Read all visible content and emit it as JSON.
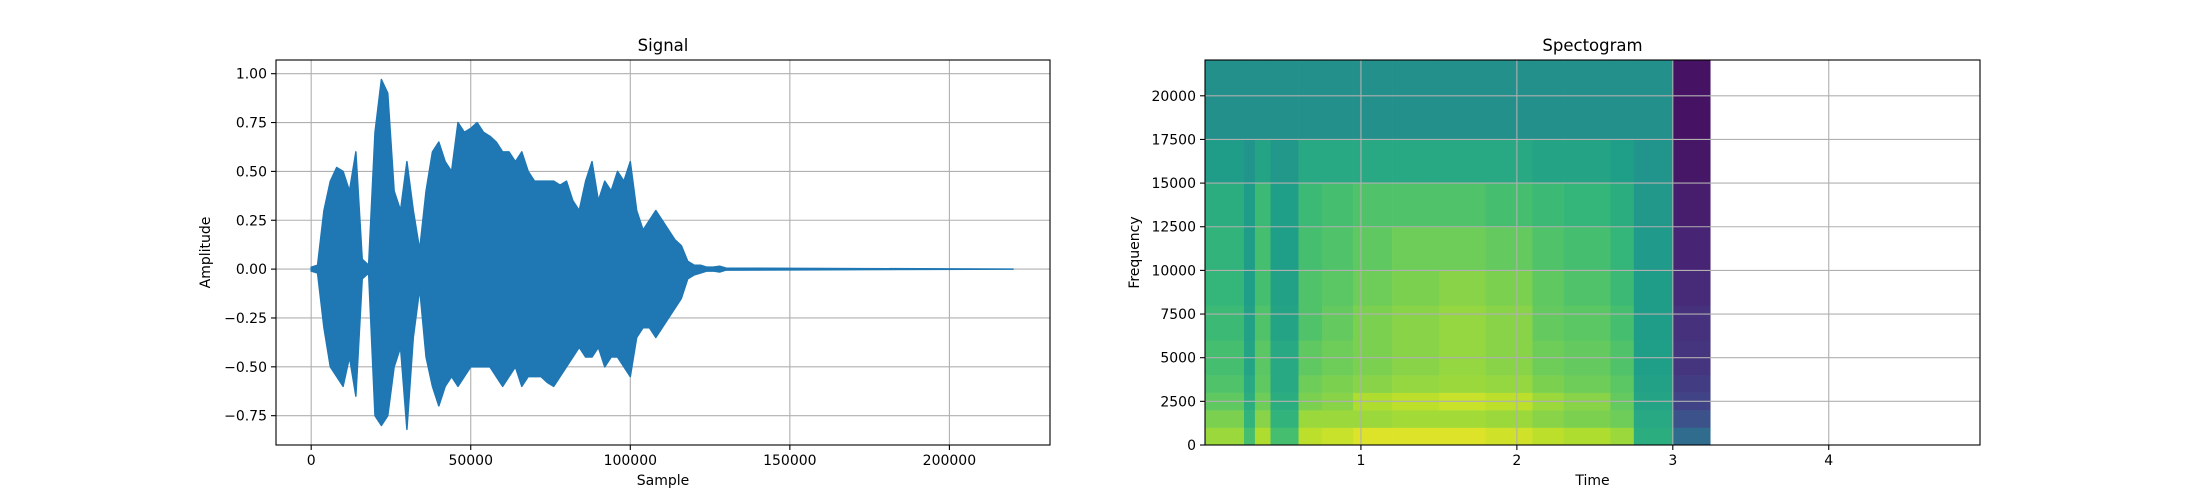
{
  "chart_data": [
    {
      "type": "envelope",
      "title": "Signal",
      "xlabel": "Sample",
      "ylabel": "Amplitude",
      "color": "#1f77b4",
      "grid": true,
      "xlim": [
        -11025,
        231525
      ],
      "ylim": [
        -0.9,
        1.07
      ],
      "xticks": [
        0,
        50000,
        100000,
        150000,
        200000
      ],
      "yticks": [
        {
          "value": -0.75,
          "label": "−0.75"
        },
        {
          "value": -0.5,
          "label": "−0.50"
        },
        {
          "value": -0.25,
          "label": "−0.25"
        },
        {
          "value": 0,
          "label": "0.00"
        },
        {
          "value": 0.25,
          "label": "0.25"
        },
        {
          "value": 0.5,
          "label": "0.50"
        },
        {
          "value": 0.75,
          "label": "0.75"
        },
        {
          "value": 1,
          "label": "1.00"
        }
      ],
      "x": [
        0,
        2000,
        4000,
        6000,
        8000,
        10000,
        12000,
        14000,
        16000,
        18000,
        20000,
        22000,
        24000,
        26000,
        28000,
        30000,
        32000,
        34000,
        36000,
        38000,
        40000,
        42000,
        44000,
        46000,
        48000,
        50000,
        52000,
        54000,
        56000,
        58000,
        60000,
        62000,
        64000,
        66000,
        68000,
        70000,
        72000,
        74000,
        76000,
        78000,
        80000,
        82000,
        84000,
        86000,
        88000,
        90000,
        92000,
        94000,
        96000,
        98000,
        100000,
        102000,
        104000,
        106000,
        108000,
        110000,
        112000,
        114000,
        116000,
        118000,
        120000,
        122000,
        124000,
        126000,
        128000,
        130000,
        220000
      ],
      "upper": [
        0.01,
        0.02,
        0.3,
        0.45,
        0.52,
        0.5,
        0.4,
        0.6,
        0.05,
        0.02,
        0.7,
        0.97,
        0.9,
        0.4,
        0.3,
        0.55,
        0.3,
        0.1,
        0.4,
        0.6,
        0.65,
        0.55,
        0.5,
        0.75,
        0.7,
        0.72,
        0.75,
        0.7,
        0.68,
        0.65,
        0.6,
        0.6,
        0.55,
        0.6,
        0.5,
        0.45,
        0.45,
        0.45,
        0.45,
        0.43,
        0.45,
        0.35,
        0.3,
        0.45,
        0.55,
        0.35,
        0.45,
        0.4,
        0.5,
        0.45,
        0.55,
        0.3,
        0.2,
        0.25,
        0.3,
        0.25,
        0.2,
        0.15,
        0.12,
        0.04,
        0.02,
        0.02,
        0.01,
        0.01,
        0.015,
        0.005,
        0
      ],
      "lower": [
        -0.01,
        -0.02,
        -0.3,
        -0.5,
        -0.55,
        -0.6,
        -0.45,
        -0.65,
        -0.05,
        -0.02,
        -0.75,
        -0.8,
        -0.75,
        -0.5,
        -0.4,
        -0.82,
        -0.35,
        -0.1,
        -0.45,
        -0.6,
        -0.7,
        -0.6,
        -0.55,
        -0.6,
        -0.55,
        -0.5,
        -0.5,
        -0.5,
        -0.5,
        -0.55,
        -0.6,
        -0.55,
        -0.5,
        -0.6,
        -0.55,
        -0.55,
        -0.55,
        -0.58,
        -0.6,
        -0.55,
        -0.5,
        -0.45,
        -0.4,
        -0.45,
        -0.45,
        -0.4,
        -0.5,
        -0.45,
        -0.45,
        -0.5,
        -0.55,
        -0.35,
        -0.3,
        -0.3,
        -0.35,
        -0.3,
        -0.25,
        -0.2,
        -0.15,
        -0.05,
        -0.03,
        -0.02,
        -0.01,
        -0.01,
        -0.015,
        -0.005,
        0
      ]
    },
    {
      "type": "spectrogram",
      "title": "Spectogram",
      "xlabel": "Time",
      "ylabel": "Frequency",
      "colormap": "viridis",
      "grid": true,
      "xlim": [
        0,
        4.97
      ],
      "ylim": [
        0,
        22050
      ],
      "xticks": [
        1,
        2,
        3,
        4
      ],
      "yticks": [
        0,
        2500,
        5000,
        7500,
        10000,
        12500,
        15000,
        17500,
        20000
      ],
      "time_edges": [
        0,
        0.25,
        0.32,
        0.42,
        0.6,
        0.75,
        0.95,
        1.2,
        1.5,
        1.8,
        2.1,
        2.3,
        2.6,
        2.75,
        3.0,
        3.24
      ],
      "freq_edges": [
        0,
        1000,
        2000,
        3000,
        4000,
        6000,
        8000,
        10000,
        12500,
        15000,
        17500,
        22050
      ],
      "z": [
        [
          0.85,
          0.8,
          0.75,
          0.72,
          0.7,
          0.68,
          0.66,
          0.65,
          0.62,
          0.55,
          0.5
        ],
        [
          0.7,
          0.65,
          0.62,
          0.6,
          0.58,
          0.57,
          0.56,
          0.55,
          0.55,
          0.52,
          0.5
        ],
        [
          0.88,
          0.82,
          0.78,
          0.75,
          0.74,
          0.72,
          0.7,
          0.7,
          0.68,
          0.58,
          0.5
        ],
        [
          0.7,
          0.65,
          0.62,
          0.6,
          0.6,
          0.58,
          0.57,
          0.56,
          0.56,
          0.53,
          0.5
        ],
        [
          0.9,
          0.85,
          0.8,
          0.78,
          0.75,
          0.72,
          0.72,
          0.7,
          0.68,
          0.6,
          0.5
        ],
        [
          0.92,
          0.85,
          0.82,
          0.8,
          0.78,
          0.76,
          0.74,
          0.72,
          0.7,
          0.6,
          0.5
        ],
        [
          0.95,
          0.85,
          0.88,
          0.82,
          0.8,
          0.8,
          0.78,
          0.75,
          0.72,
          0.6,
          0.5
        ],
        [
          0.95,
          0.86,
          0.9,
          0.84,
          0.82,
          0.82,
          0.8,
          0.78,
          0.72,
          0.6,
          0.5
        ],
        [
          0.95,
          0.86,
          0.92,
          0.85,
          0.84,
          0.84,
          0.82,
          0.78,
          0.72,
          0.6,
          0.5
        ],
        [
          0.93,
          0.85,
          0.9,
          0.84,
          0.82,
          0.82,
          0.8,
          0.76,
          0.7,
          0.6,
          0.5
        ],
        [
          0.9,
          0.82,
          0.85,
          0.8,
          0.78,
          0.76,
          0.75,
          0.72,
          0.68,
          0.58,
          0.5
        ],
        [
          0.88,
          0.8,
          0.82,
          0.78,
          0.76,
          0.74,
          0.72,
          0.7,
          0.66,
          0.58,
          0.5
        ],
        [
          0.85,
          0.78,
          0.76,
          0.74,
          0.72,
          0.7,
          0.68,
          0.66,
          0.62,
          0.56,
          0.5
        ],
        [
          0.62,
          0.6,
          0.58,
          0.57,
          0.56,
          0.55,
          0.55,
          0.54,
          0.53,
          0.52,
          0.5
        ],
        [
          0.35,
          0.25,
          0.2,
          0.18,
          0.15,
          0.14,
          0.12,
          0.1,
          0.08,
          0.06,
          0.05
        ]
      ]
    }
  ]
}
